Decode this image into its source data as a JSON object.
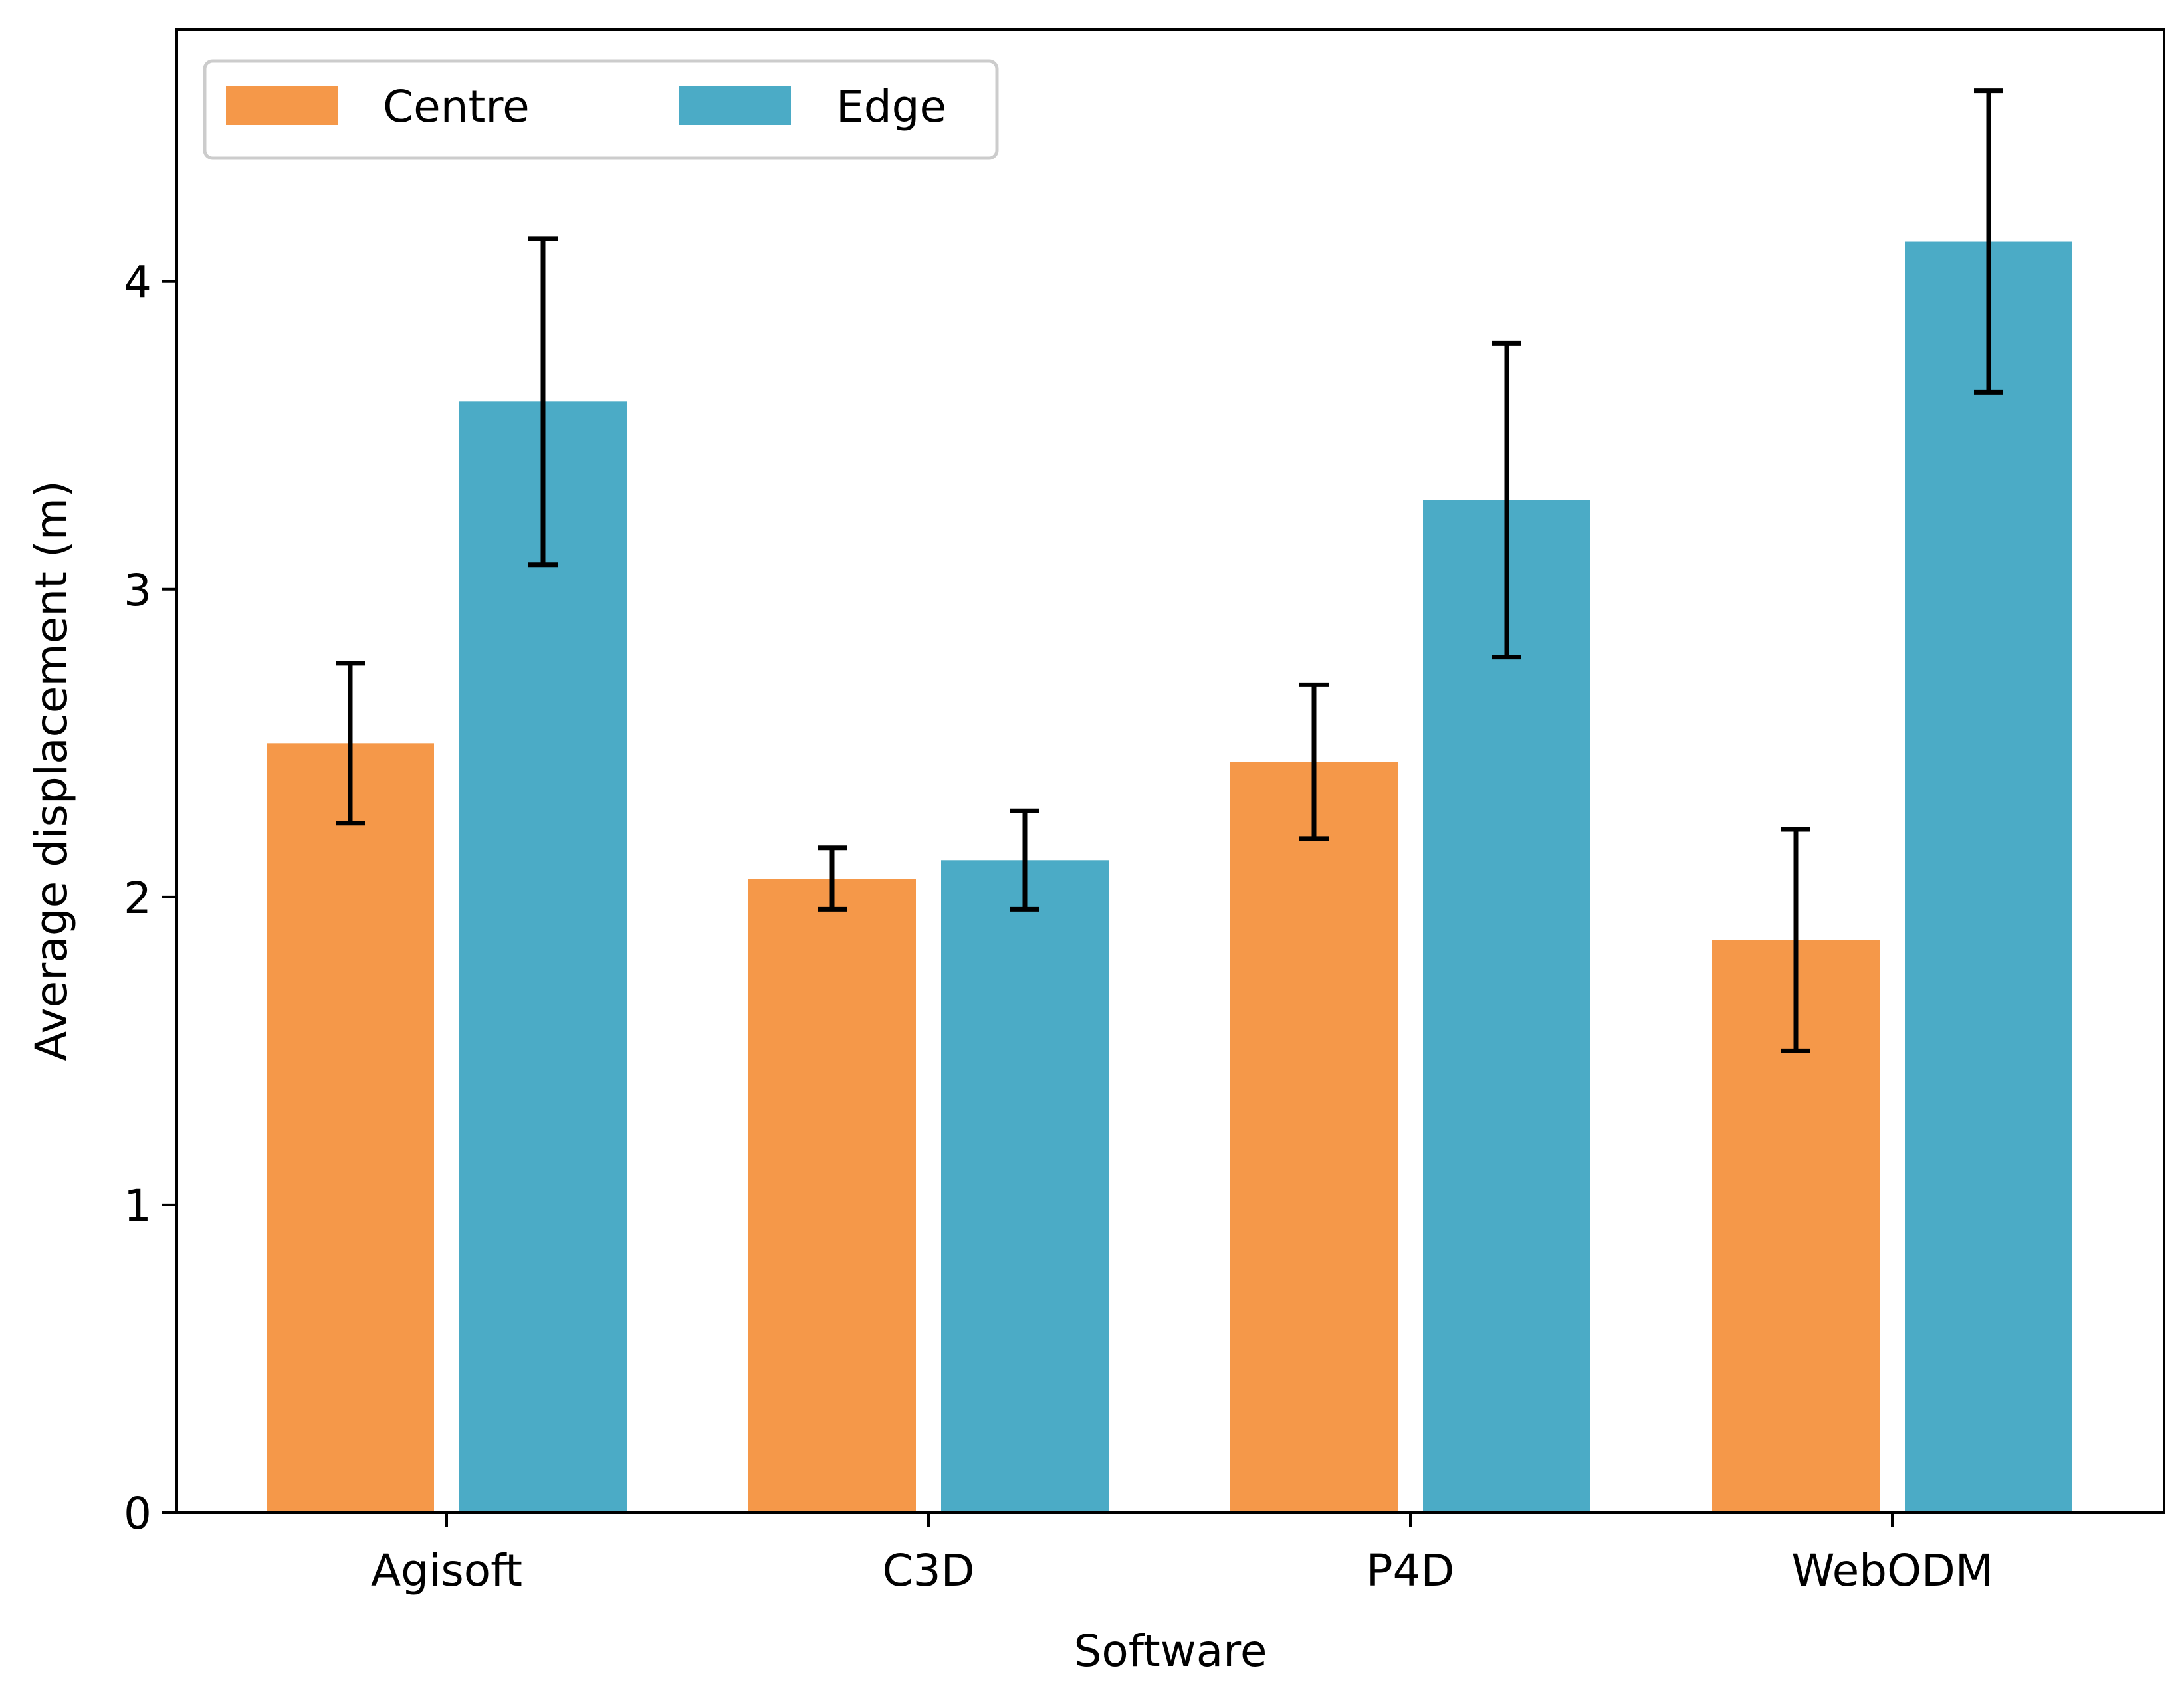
{
  "chart_data": {
    "type": "bar",
    "title": "",
    "xlabel": "Software",
    "ylabel": "Average displacement (m)",
    "categories": [
      "Agisoft",
      "C3D",
      "P4D",
      "WebODM"
    ],
    "ylim": [
      0,
      4.82
    ],
    "yticks": [
      0,
      1,
      2,
      3,
      4
    ],
    "ytick_labels": [
      "0",
      "1",
      "2",
      "3",
      "4"
    ],
    "grid": false,
    "legend_position": "top-left",
    "series": [
      {
        "name": "Centre",
        "color": "#F59849",
        "values": [
          2.5,
          2.06,
          2.44,
          1.86
        ],
        "errors": [
          0.26,
          0.1,
          0.25,
          0.36
        ]
      },
      {
        "name": "Edge",
        "color": "#4BABC6",
        "values": [
          3.61,
          2.12,
          3.29,
          4.13
        ],
        "errors": [
          0.53,
          0.16,
          0.51,
          0.49
        ]
      }
    ]
  }
}
